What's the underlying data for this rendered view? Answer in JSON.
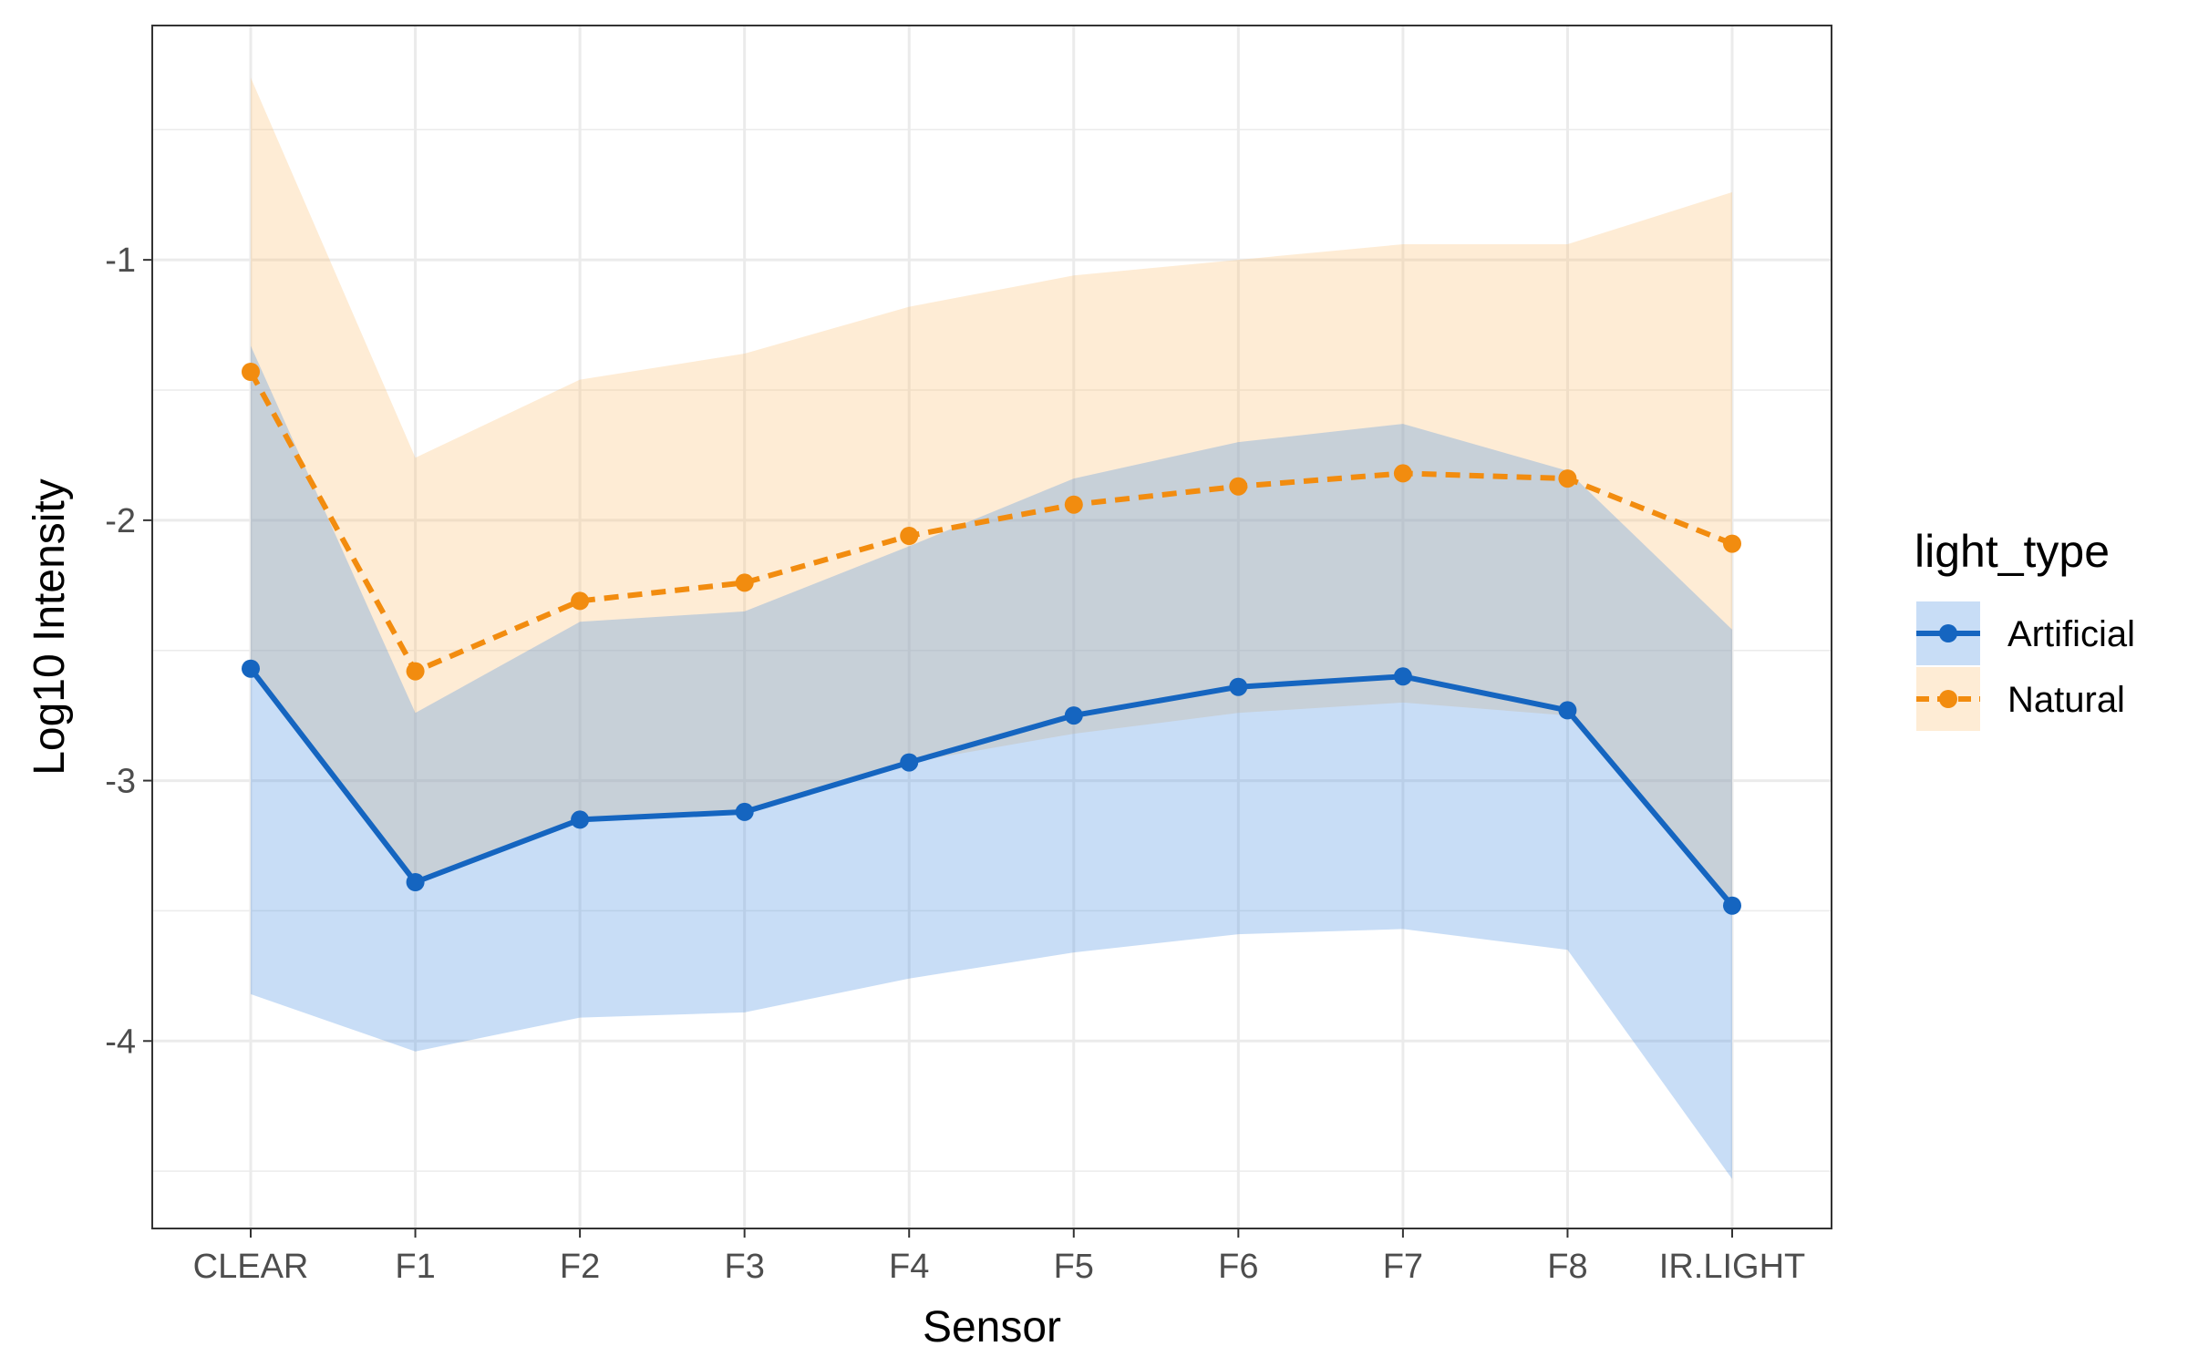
{
  "chart_data": {
    "type": "line",
    "xlabel": "Sensor",
    "ylabel": "Log10 Intensity",
    "categories": [
      "CLEAR",
      "F1",
      "F2",
      "F3",
      "F4",
      "F5",
      "F6",
      "F7",
      "F8",
      "IR.LIGHT"
    ],
    "ylim": [
      -4.72,
      -0.1
    ],
    "y_ticks": [
      -4,
      -3,
      -2,
      -1
    ],
    "y_tick_labels": [
      "-4",
      "-3",
      "-2",
      "-1"
    ],
    "grid": true,
    "legend": {
      "title": "light_type",
      "position": "right"
    },
    "series": [
      {
        "name": "Artificial",
        "color": "#1565C0",
        "band_color": "#4A90E2",
        "line_style": "solid",
        "values": [
          -2.57,
          -3.39,
          -3.15,
          -3.12,
          -2.93,
          -2.75,
          -2.64,
          -2.6,
          -2.73,
          -3.48
        ],
        "lower": [
          -3.82,
          -4.04,
          -3.91,
          -3.89,
          -3.76,
          -3.66,
          -3.59,
          -3.57,
          -3.65,
          -4.53
        ],
        "upper": [
          -1.33,
          -2.74,
          -2.39,
          -2.35,
          -2.1,
          -1.84,
          -1.7,
          -1.63,
          -1.81,
          -2.42
        ]
      },
      {
        "name": "Natural",
        "color": "#F28C0F",
        "band_color": "#FDBF74",
        "line_style": "dashed",
        "values": [
          -1.43,
          -2.58,
          -2.31,
          -2.24,
          -2.06,
          -1.94,
          -1.87,
          -1.82,
          -1.84,
          -2.09
        ],
        "lower": [
          -2.57,
          -3.39,
          -3.15,
          -3.12,
          -2.93,
          -2.82,
          -2.74,
          -2.7,
          -2.75,
          -3.48
        ],
        "upper": [
          -0.3,
          -1.76,
          -1.46,
          -1.36,
          -1.18,
          -1.06,
          -1.0,
          -0.94,
          -0.94,
          -0.74
        ]
      }
    ]
  }
}
